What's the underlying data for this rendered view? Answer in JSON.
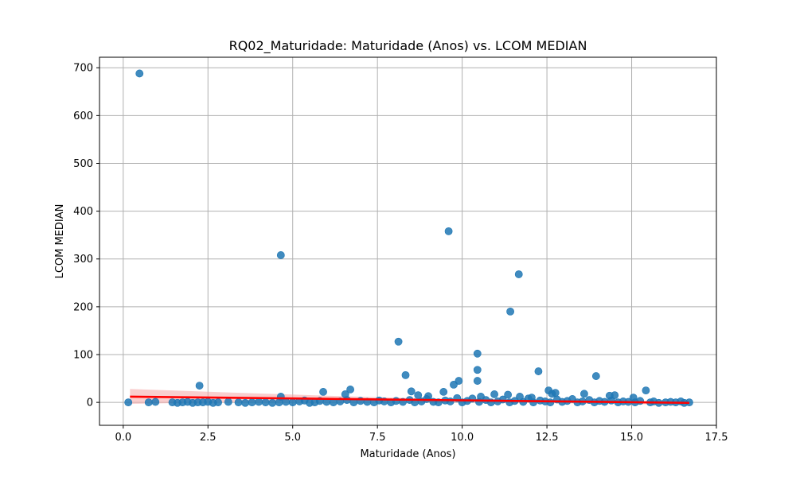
{
  "chart_data": {
    "type": "scatter",
    "title": "RQ02_Maturidade: Maturidade (Anos) vs. LCOM MEDIAN",
    "xlabel": "Maturidade (Anos)",
    "ylabel": "LCOM MEDIAN",
    "xlim": [
      -0.7,
      17.5
    ],
    "ylim": [
      -48,
      722
    ],
    "xticks": [
      0.0,
      2.5,
      5.0,
      7.5,
      10.0,
      12.5,
      15.0,
      17.5
    ],
    "xtick_labels": [
      "0.0",
      "2.5",
      "5.0",
      "7.5",
      "10.0",
      "12.5",
      "15.0",
      "17.5"
    ],
    "yticks": [
      0,
      100,
      200,
      300,
      400,
      500,
      600,
      700
    ],
    "ytick_labels": [
      "0",
      "100",
      "200",
      "300",
      "400",
      "500",
      "600",
      "700"
    ],
    "grid": true,
    "point_color": "#1f77b4",
    "regression_color": "#ff0000",
    "ci_color": "#f4a6a6",
    "regression_line": {
      "x": [
        0.2,
        16.7
      ],
      "y": [
        12,
        -1
      ]
    },
    "ci_band": {
      "x": [
        0.2,
        3.0,
        6.0,
        8.5,
        11.0,
        14.0,
        16.7
      ],
      "upper": [
        28,
        21,
        14,
        9,
        6,
        4,
        3
      ],
      "lower": [
        -3,
        0,
        2,
        2,
        0,
        -3,
        -5
      ]
    },
    "points": [
      [
        0.48,
        688
      ],
      [
        4.65,
        308
      ],
      [
        9.6,
        358
      ],
      [
        11.67,
        268
      ],
      [
        11.42,
        190
      ],
      [
        8.12,
        127
      ],
      [
        10.45,
        102
      ],
      [
        12.25,
        65
      ],
      [
        10.45,
        68
      ],
      [
        8.33,
        57
      ],
      [
        13.95,
        55
      ],
      [
        10.45,
        45
      ],
      [
        9.9,
        45
      ],
      [
        9.75,
        37
      ],
      [
        2.25,
        35
      ],
      [
        6.7,
        27
      ],
      [
        12.55,
        25
      ],
      [
        15.42,
        25
      ],
      [
        8.5,
        23
      ],
      [
        9.45,
        22
      ],
      [
        5.9,
        22
      ],
      [
        12.75,
        20
      ],
      [
        12.65,
        18
      ],
      [
        13.6,
        18
      ],
      [
        6.55,
        17
      ],
      [
        11.35,
        16
      ],
      [
        14.5,
        15
      ],
      [
        14.35,
        14
      ],
      [
        10.95,
        17
      ],
      [
        4.65,
        12
      ],
      [
        8.7,
        15
      ],
      [
        9.0,
        13
      ],
      [
        10.55,
        12
      ],
      [
        11.7,
        12
      ],
      [
        12.05,
        10
      ],
      [
        15.05,
        10
      ],
      [
        0.15,
        0
      ],
      [
        0.75,
        0
      ],
      [
        0.95,
        1
      ],
      [
        1.45,
        0
      ],
      [
        1.6,
        -1
      ],
      [
        1.75,
        0
      ],
      [
        1.9,
        1
      ],
      [
        2.05,
        -1
      ],
      [
        2.2,
        0
      ],
      [
        2.35,
        0
      ],
      [
        2.5,
        1
      ],
      [
        2.65,
        -1
      ],
      [
        2.8,
        0
      ],
      [
        3.1,
        1
      ],
      [
        3.4,
        0
      ],
      [
        3.6,
        -1
      ],
      [
        3.8,
        0
      ],
      [
        4.0,
        1
      ],
      [
        4.2,
        0
      ],
      [
        4.4,
        -1
      ],
      [
        4.6,
        0
      ],
      [
        4.8,
        1
      ],
      [
        5.0,
        0
      ],
      [
        5.2,
        2
      ],
      [
        5.35,
        4
      ],
      [
        5.5,
        -1
      ],
      [
        5.65,
        0
      ],
      [
        5.8,
        3
      ],
      [
        6.0,
        1
      ],
      [
        6.2,
        0
      ],
      [
        6.4,
        2
      ],
      [
        6.6,
        5
      ],
      [
        6.8,
        0
      ],
      [
        7.0,
        3
      ],
      [
        7.2,
        1
      ],
      [
        7.4,
        0
      ],
      [
        7.55,
        4
      ],
      [
        7.7,
        2
      ],
      [
        7.9,
        0
      ],
      [
        8.05,
        3
      ],
      [
        8.25,
        1
      ],
      [
        8.45,
        5
      ],
      [
        8.6,
        0
      ],
      [
        8.8,
        2
      ],
      [
        8.95,
        7
      ],
      [
        9.15,
        1
      ],
      [
        9.3,
        0
      ],
      [
        9.5,
        4
      ],
      [
        9.65,
        2
      ],
      [
        9.85,
        9
      ],
      [
        10.0,
        0
      ],
      [
        10.15,
        3
      ],
      [
        10.3,
        8
      ],
      [
        10.5,
        1
      ],
      [
        10.7,
        5
      ],
      [
        10.85,
        0
      ],
      [
        11.05,
        2
      ],
      [
        11.2,
        6
      ],
      [
        11.4,
        0
      ],
      [
        11.55,
        3
      ],
      [
        11.8,
        1
      ],
      [
        11.95,
        8
      ],
      [
        12.1,
        0
      ],
      [
        12.3,
        4
      ],
      [
        12.45,
        2
      ],
      [
        12.6,
        0
      ],
      [
        12.8,
        6
      ],
      [
        12.95,
        1
      ],
      [
        13.1,
        3
      ],
      [
        13.25,
        7
      ],
      [
        13.4,
        0
      ],
      [
        13.55,
        2
      ],
      [
        13.75,
        5
      ],
      [
        13.9,
        0
      ],
      [
        14.05,
        3
      ],
      [
        14.2,
        1
      ],
      [
        14.4,
        4
      ],
      [
        14.6,
        0
      ],
      [
        14.75,
        2
      ],
      [
        14.9,
        1
      ],
      [
        15.1,
        0
      ],
      [
        15.25,
        3
      ],
      [
        15.55,
        0
      ],
      [
        15.65,
        2
      ],
      [
        15.8,
        -1
      ],
      [
        16.0,
        0
      ],
      [
        16.15,
        1
      ],
      [
        16.3,
        0
      ],
      [
        16.45,
        2
      ],
      [
        16.55,
        -1
      ],
      [
        16.7,
        0
      ]
    ]
  }
}
